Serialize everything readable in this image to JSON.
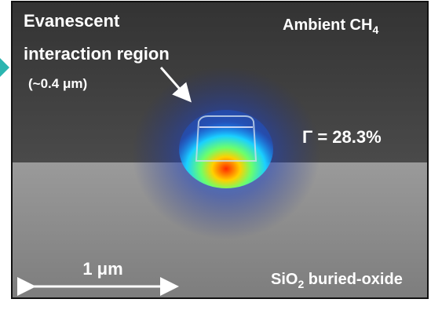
{
  "annotations": {
    "evanescent_line1": "Evanescent",
    "evanescent_line2": "interaction region",
    "evanescent_size": "(~0.4 μm)",
    "ambient": "Ambient CH",
    "ambient_sub": "4",
    "confinement": "Γ = 28.3%",
    "scale_bar": "1 μm",
    "substrate": "SiO",
    "substrate_sub": "2",
    "substrate_rest": " buried-oxide"
  }
}
